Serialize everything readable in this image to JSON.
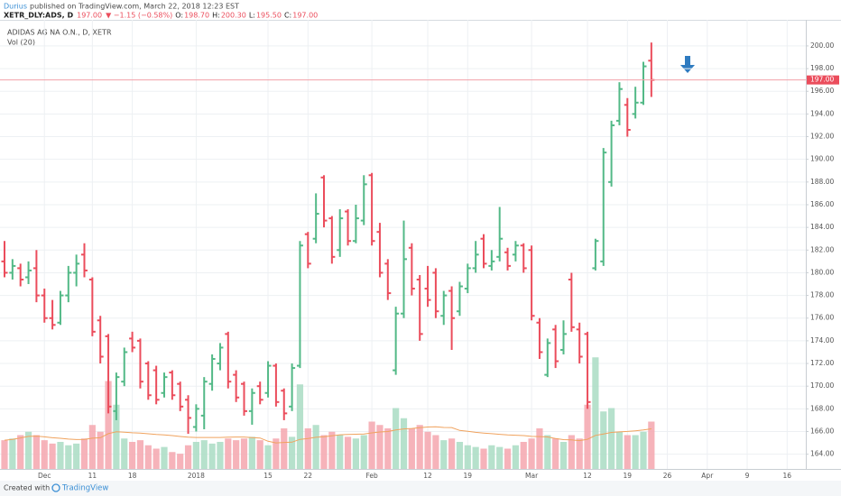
{
  "header": {
    "author": "Durius",
    "published": "published on TradingView.com, March 22, 2018 12:23 EST",
    "symbol": "XETR_DLY:ADS, D",
    "price": "197.00",
    "change": "▼ −1.15 (−0.58%)",
    "ohlc": [
      {
        "label": "O:",
        "value": "198.70"
      },
      {
        "label": "H:",
        "value": "200.30"
      },
      {
        "label": "L:",
        "value": "195.50"
      },
      {
        "label": "C:",
        "value": "197.00"
      }
    ]
  },
  "footer": {
    "text": "Created with",
    "brand": "TradingView"
  },
  "chart_data": {
    "type": "ohlc",
    "legend": [
      "ADIDAS AG NA O.N., D, XETR",
      "Vol (20)"
    ],
    "up_color": "#53b987",
    "down_color": "#eb4d5c",
    "volume_up_color": "#a9dcc3",
    "volume_down_color": "#f5a6ae",
    "volume_ma_color": "#f0a35e",
    "volume_ma_period": 20,
    "grid": true,
    "categories": [
      null,
      null,
      null,
      null,
      null,
      "Dec",
      null,
      null,
      null,
      null,
      null,
      "11",
      null,
      null,
      null,
      null,
      "18",
      null,
      null,
      null,
      null,
      null,
      null,
      null,
      "2018",
      null,
      null,
      null,
      null,
      null,
      null,
      null,
      null,
      "15",
      null,
      null,
      null,
      null,
      "22",
      null,
      null,
      null,
      null,
      null,
      null,
      null,
      "Feb",
      null,
      null,
      null,
      null,
      null,
      null,
      "12",
      null,
      null,
      null,
      null,
      "19",
      null,
      null,
      null,
      null,
      null,
      null,
      null,
      "Mar",
      null,
      null,
      null,
      null,
      null,
      null,
      "12",
      null,
      null,
      null,
      null,
      "19",
      null,
      null,
      null,
      null,
      "26",
      null,
      null,
      null,
      null,
      "Apr",
      null,
      null,
      null,
      null,
      "9",
      null,
      null,
      null,
      null,
      "16"
    ],
    "open": [
      181.0,
      180.0,
      180.4,
      179.6,
      180.4,
      178.0,
      176.0,
      175.6,
      178.0,
      180.0,
      181.6,
      179.4,
      175.8,
      174.4,
      167.8,
      170.4,
      174.2,
      174.0,
      172.0,
      171.4,
      169.4,
      171.2,
      170.2,
      168.8,
      166.4,
      167.4,
      170.2,
      172.0,
      174.6,
      171.0,
      170.2,
      167.8,
      170.0,
      169.4,
      171.8,
      169.6,
      168.2,
      171.8,
      183.4,
      183.0,
      188.4,
      184.8,
      182.0,
      185.4,
      182.8,
      184.6,
      188.6,
      183.6,
      180.8,
      171.4,
      176.4,
      182.2,
      179.4,
      178.6,
      180.0,
      176.2,
      178.4,
      176.6,
      178.6,
      180.4,
      183.0,
      180.6,
      181.4,
      181.8,
      181.6,
      182.4,
      182.0,
      175.6,
      171.0,
      175.0,
      173.2,
      179.4,
      175.0,
      174.6,
      180.4,
      181.0,
      188.0,
      193.4,
      194.8,
      194.0,
      195.0,
      198.7,
      null,
      null,
      null,
      null,
      null,
      null,
      null,
      null,
      null,
      null,
      null,
      null,
      null,
      null,
      null,
      null,
      null
    ],
    "high": [
      182.8,
      181.2,
      180.8,
      181.0,
      182.0,
      178.6,
      177.6,
      178.4,
      180.6,
      181.6,
      182.6,
      179.6,
      176.2,
      174.6,
      171.2,
      173.4,
      174.8,
      174.2,
      172.2,
      171.8,
      171.2,
      171.4,
      170.4,
      169.2,
      168.4,
      170.8,
      172.8,
      173.8,
      174.8,
      171.4,
      170.4,
      169.8,
      170.4,
      172.2,
      172.0,
      169.8,
      172.0,
      182.8,
      183.6,
      187.0,
      188.6,
      185.0,
      185.6,
      185.6,
      186.0,
      188.6,
      188.8,
      184.4,
      181.2,
      177.0,
      184.6,
      182.6,
      179.8,
      180.6,
      180.4,
      178.4,
      178.8,
      179.2,
      180.8,
      182.8,
      183.4,
      182.0,
      185.8,
      182.2,
      182.8,
      182.6,
      182.4,
      176.0,
      174.2,
      175.4,
      175.8,
      180.0,
      175.6,
      174.8,
      183.0,
      191.0,
      193.4,
      196.8,
      195.4,
      196.4,
      198.6,
      200.3,
      null,
      null,
      null,
      null,
      null,
      null,
      null,
      null,
      null,
      null,
      null,
      null,
      null,
      null,
      null,
      null,
      null
    ],
    "low": [
      179.6,
      179.4,
      178.8,
      179.0,
      177.4,
      175.6,
      175.0,
      175.4,
      177.4,
      178.8,
      179.6,
      174.4,
      172.0,
      167.6,
      167.0,
      170.0,
      173.0,
      169.8,
      168.8,
      168.4,
      169.0,
      168.8,
      167.8,
      165.8,
      166.0,
      166.2,
      169.6,
      171.4,
      169.8,
      168.6,
      167.4,
      166.6,
      168.4,
      169.0,
      168.2,
      167.0,
      167.8,
      171.6,
      180.4,
      182.6,
      184.0,
      180.8,
      181.4,
      182.4,
      182.6,
      184.2,
      182.4,
      179.6,
      177.6,
      171.0,
      176.0,
      178.0,
      174.0,
      177.0,
      176.0,
      175.4,
      173.2,
      176.2,
      178.2,
      180.0,
      180.4,
      180.2,
      181.0,
      180.2,
      181.0,
      180.0,
      175.8,
      172.4,
      170.8,
      171.6,
      172.8,
      174.8,
      172.0,
      168.0,
      180.2,
      180.6,
      187.6,
      193.0,
      192.0,
      193.6,
      194.8,
      195.5,
      null,
      null,
      null,
      null,
      null,
      null,
      null,
      null,
      null,
      null,
      null,
      null,
      null,
      null,
      null,
      null,
      null
    ],
    "close": [
      180.0,
      180.6,
      179.4,
      180.2,
      178.0,
      176.0,
      175.4,
      178.0,
      180.0,
      180.8,
      180.2,
      174.8,
      172.6,
      168.2,
      170.8,
      173.0,
      173.4,
      170.4,
      169.2,
      168.8,
      170.8,
      169.2,
      168.2,
      167.2,
      168.0,
      170.4,
      172.4,
      173.4,
      170.4,
      169.0,
      167.8,
      169.4,
      168.8,
      171.8,
      168.6,
      167.6,
      171.6,
      182.4,
      180.8,
      185.2,
      184.6,
      181.4,
      184.8,
      182.8,
      184.8,
      187.8,
      182.8,
      180.0,
      178.2,
      176.4,
      181.2,
      178.6,
      174.6,
      177.6,
      176.6,
      178.0,
      176.0,
      178.8,
      180.4,
      181.6,
      180.8,
      181.0,
      183.0,
      180.6,
      182.4,
      180.4,
      176.2,
      173.0,
      173.8,
      172.2,
      174.6,
      175.2,
      172.6,
      168.6,
      182.8,
      190.6,
      193.0,
      196.2,
      192.6,
      195.0,
      198.2,
      197.0,
      null,
      null,
      null,
      null,
      null,
      null,
      null,
      null,
      null,
      null,
      null,
      null,
      null,
      null,
      null,
      null,
      null
    ],
    "volume": [
      850000,
      900000,
      1000000,
      1100000,
      1000000,
      850000,
      750000,
      800000,
      700000,
      750000,
      900000,
      1300000,
      1100000,
      2600000,
      1900000,
      900000,
      800000,
      850000,
      700000,
      600000,
      650000,
      500000,
      450000,
      700000,
      800000,
      850000,
      750000,
      800000,
      900000,
      850000,
      900000,
      950000,
      850000,
      700000,
      900000,
      1200000,
      950000,
      2500000,
      1200000,
      1300000,
      1000000,
      1100000,
      1000000,
      950000,
      900000,
      1000000,
      1400000,
      1300000,
      1200000,
      1800000,
      1500000,
      1200000,
      1300000,
      1100000,
      1000000,
      850000,
      900000,
      800000,
      700000,
      650000,
      600000,
      700000,
      650000,
      600000,
      700000,
      800000,
      900000,
      1200000,
      1000000,
      900000,
      800000,
      1000000,
      900000,
      1900000,
      3300000,
      1700000,
      1800000,
      1100000,
      1000000,
      1000000,
      1100000,
      1400000,
      null,
      null,
      null,
      null,
      null,
      null,
      null,
      null,
      null,
      null,
      null,
      null,
      null,
      null,
      null,
      null,
      null
    ],
    "volume_ylim": [
      0,
      4000000
    ],
    "ylim": [
      162.7,
      202.3
    ],
    "yticks": [
      {
        "value": 164,
        "label": "164.00"
      },
      {
        "value": 166,
        "label": "166.00"
      },
      {
        "value": 168,
        "label": "168.00"
      },
      {
        "value": 170,
        "label": "170.00"
      },
      {
        "value": 172,
        "label": "172.00"
      },
      {
        "value": 174,
        "label": "174.00"
      },
      {
        "value": 176,
        "label": "176.00"
      },
      {
        "value": 178,
        "label": "178.00"
      },
      {
        "value": 180,
        "label": "180.00"
      },
      {
        "value": 182,
        "label": "182.00"
      },
      {
        "value": 184,
        "label": "184.00"
      },
      {
        "value": 186,
        "label": "186.00"
      },
      {
        "value": 188,
        "label": "188.00"
      },
      {
        "value": 190,
        "label": "190.00"
      },
      {
        "value": 192,
        "label": "192.00"
      },
      {
        "value": 194,
        "label": "194.00"
      },
      {
        "value": 196,
        "label": "196.00"
      },
      {
        "value": 198,
        "label": "198.00"
      },
      {
        "value": 200,
        "label": "200.00"
      }
    ],
    "last_price": {
      "value": 197,
      "label": "197.00"
    }
  }
}
